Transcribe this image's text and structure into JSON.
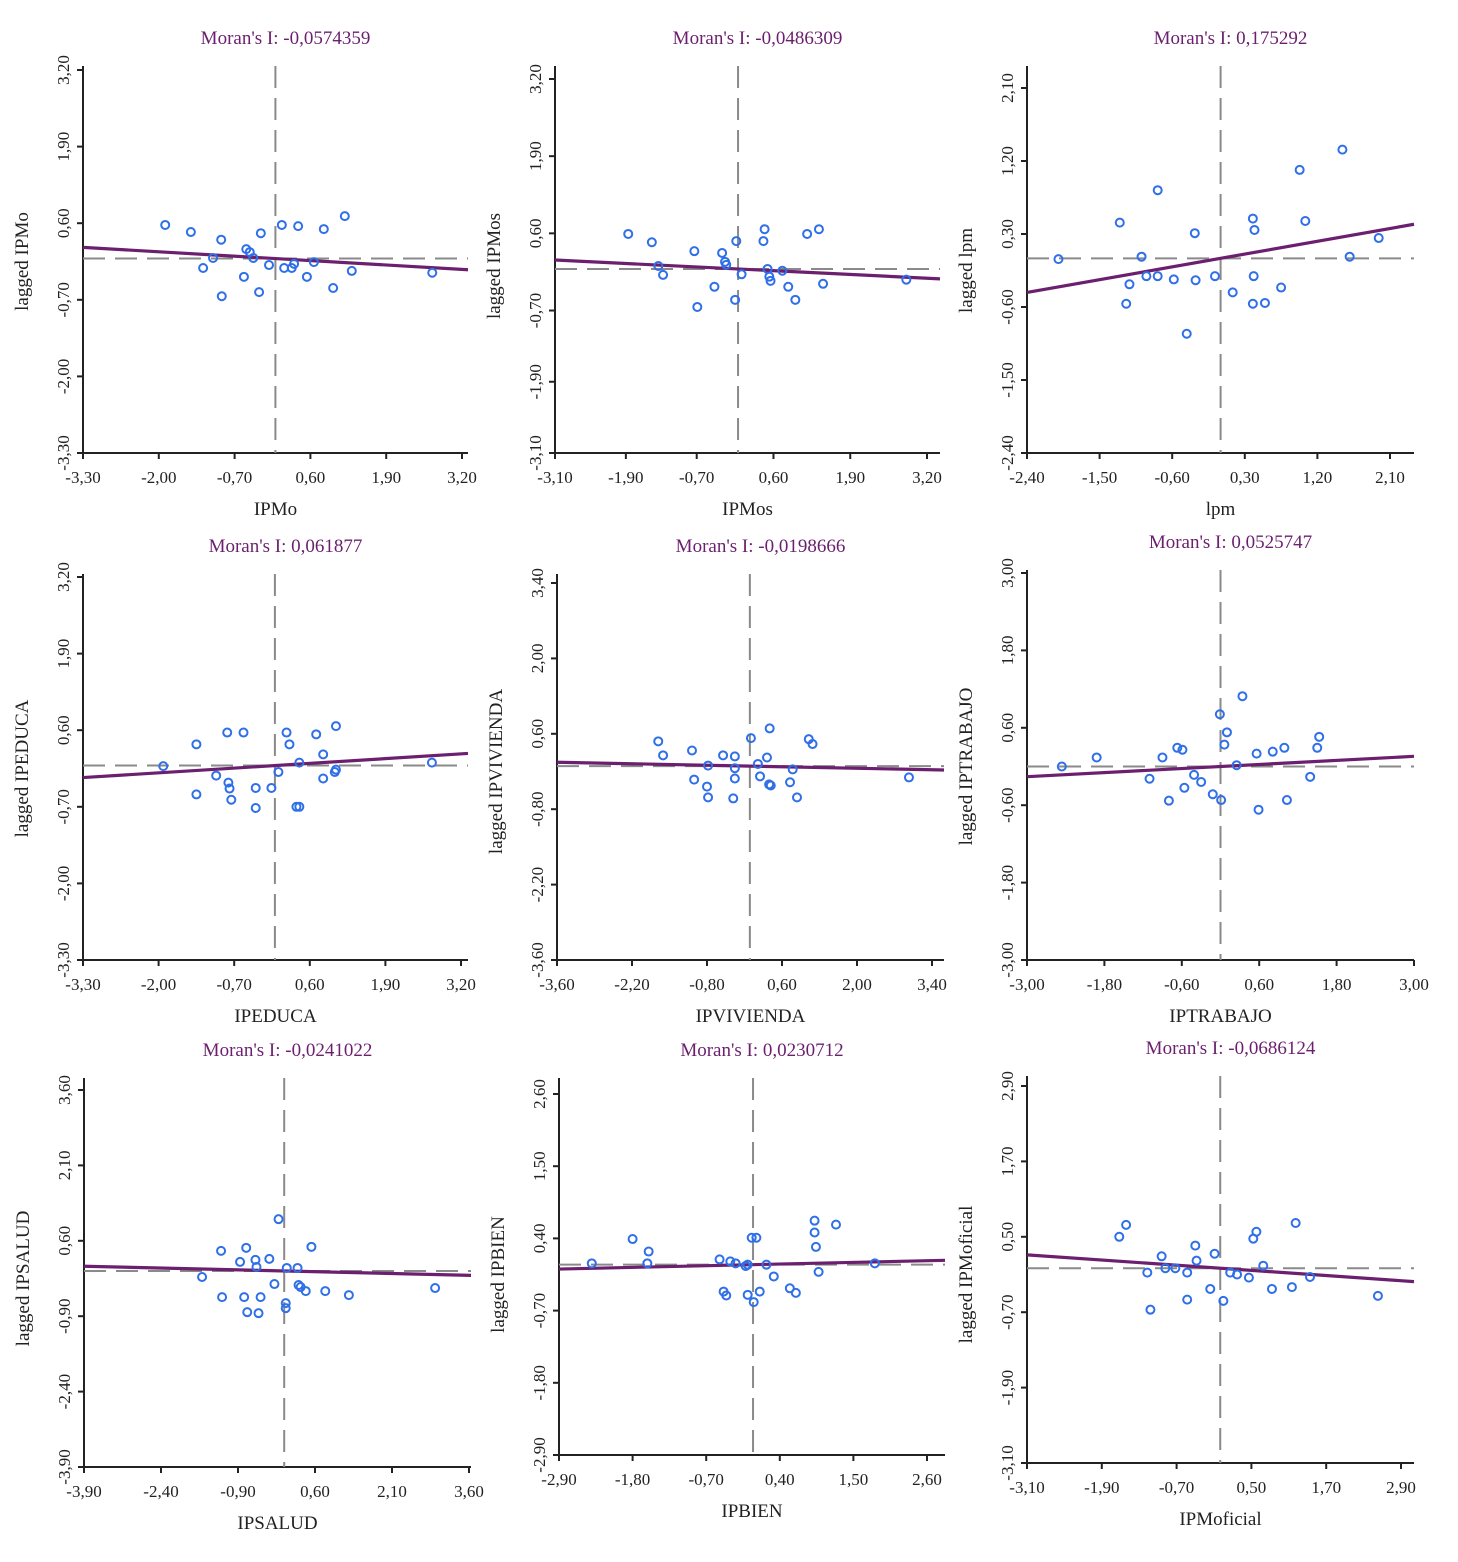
{
  "chart_data": [
    {
      "type": "scatter",
      "title": "Moran's I: -0,0574359",
      "moran_i": -0.0574359,
      "xlabel": "IPMo",
      "ylabel": "lagged IPMo",
      "xlim": [
        -3.3,
        3.2
      ],
      "ylim": [
        -3.3,
        3.2
      ],
      "xticks": [
        "-3,30",
        "-2,00",
        "-0,70",
        "0,60",
        "1,90",
        "3,20"
      ],
      "yticks": [
        "-3,30",
        "-2,00",
        "-0,70",
        "0,60",
        "1,90",
        "3,20"
      ],
      "points": [
        [
          -1.89,
          0.57
        ],
        [
          -1.45,
          0.45
        ],
        [
          -1.24,
          -0.16
        ],
        [
          -1.07,
          0.01
        ],
        [
          -0.93,
          0.32
        ],
        [
          -0.92,
          -0.64
        ],
        [
          -0.54,
          -0.31
        ],
        [
          -0.5,
          0.16
        ],
        [
          -0.44,
          0.11
        ],
        [
          -0.38,
          0.01
        ],
        [
          -0.28,
          -0.57
        ],
        [
          -0.25,
          0.43
        ],
        [
          -0.11,
          -0.11
        ],
        [
          0.11,
          0.57
        ],
        [
          0.15,
          -0.16
        ],
        [
          0.28,
          -0.16
        ],
        [
          0.32,
          -0.09
        ],
        [
          0.39,
          0.55
        ],
        [
          0.54,
          -0.31
        ],
        [
          0.66,
          -0.06
        ],
        [
          0.83,
          0.5
        ],
        [
          0.99,
          -0.5
        ],
        [
          1.19,
          0.72
        ],
        [
          1.31,
          -0.21
        ],
        [
          2.69,
          -0.24
        ]
      ],
      "mean_x": 0.0,
      "mean_y": 0.0
    },
    {
      "type": "scatter",
      "title": "Moran's I: -0,0486309",
      "moran_i": -0.0486309,
      "xlabel": "IPMos",
      "ylabel": "lagged IPMos",
      "xlim": [
        -3.1,
        3.2
      ],
      "ylim": [
        -3.1,
        3.2
      ],
      "xticks": [
        "-3,10",
        "-1,90",
        "-0,70",
        "0,60",
        "1,90",
        "3,20"
      ],
      "yticks": [
        "-3,10",
        "-1,90",
        "-0,70",
        "0,60",
        "1,90",
        "3,20"
      ],
      "points": [
        [
          -1.86,
          0.59
        ],
        [
          -1.46,
          0.45
        ],
        [
          -1.35,
          0.05
        ],
        [
          -1.27,
          -0.1
        ],
        [
          -0.74,
          0.3
        ],
        [
          -0.69,
          -0.64
        ],
        [
          -0.4,
          -0.3
        ],
        [
          -0.27,
          0.27
        ],
        [
          -0.22,
          0.12
        ],
        [
          -0.2,
          0.07
        ],
        [
          -0.05,
          -0.52
        ],
        [
          -0.03,
          0.47
        ],
        [
          0.06,
          -0.09
        ],
        [
          0.45,
          0.67
        ],
        [
          0.43,
          0.47
        ],
        [
          0.5,
          0.0
        ],
        [
          0.53,
          -0.13
        ],
        [
          0.55,
          -0.2
        ],
        [
          0.75,
          -0.03
        ],
        [
          0.85,
          -0.3
        ],
        [
          0.97,
          -0.52
        ],
        [
          1.17,
          0.59
        ],
        [
          1.37,
          0.67
        ],
        [
          1.44,
          -0.25
        ],
        [
          2.85,
          -0.18
        ]
      ],
      "mean_x": 0.0,
      "mean_y": 0.0
    },
    {
      "type": "scatter",
      "title": "Moran's I: 0,175292",
      "moran_i": 0.175292,
      "xlabel": "lpm",
      "ylabel": "lagged lpm",
      "xlim": [
        -2.4,
        2.3
      ],
      "ylim": [
        -2.4,
        2.3
      ],
      "xticks": [
        "-2,40",
        "-1,50",
        "-0,60",
        "0,30",
        "1,20",
        "2,10"
      ],
      "yticks": [
        "-2,40",
        "-1,50",
        "-0,60",
        "0,30",
        "1,20",
        "2,10"
      ],
      "points": [
        [
          -2.01,
          -0.01
        ],
        [
          -1.25,
          0.44
        ],
        [
          -0.78,
          0.84
        ],
        [
          -1.13,
          -0.32
        ],
        [
          -1.17,
          -0.56
        ],
        [
          -0.98,
          0.02
        ],
        [
          -0.92,
          -0.22
        ],
        [
          -0.78,
          -0.22
        ],
        [
          -0.58,
          -0.26
        ],
        [
          -0.32,
          0.31
        ],
        [
          -0.31,
          -0.27
        ],
        [
          -0.07,
          -0.22
        ],
        [
          -0.42,
          -0.93
        ],
        [
          0.4,
          0.49
        ],
        [
          0.42,
          0.35
        ],
        [
          0.41,
          -0.22
        ],
        [
          0.15,
          -0.42
        ],
        [
          0.4,
          -0.56
        ],
        [
          0.55,
          -0.55
        ],
        [
          0.75,
          -0.36
        ],
        [
          0.98,
          1.09
        ],
        [
          1.05,
          0.46
        ],
        [
          1.51,
          1.34
        ],
        [
          1.6,
          0.02
        ],
        [
          1.96,
          0.25
        ]
      ],
      "mean_x": 0.0,
      "mean_y": 0.0
    },
    {
      "type": "scatter",
      "title": "Moran's I: 0,061877",
      "moran_i": 0.061877,
      "xlabel": "IPEDUCA",
      "ylabel": "lagged IPEDUCA",
      "xlim": [
        -3.3,
        3.2
      ],
      "ylim": [
        -3.3,
        3.2
      ],
      "xticks": [
        "-3,30",
        "-2,00",
        "-0,70",
        "0,60",
        "1,90",
        "3,20"
      ],
      "yticks": [
        "-3,30",
        "-2,00",
        "-0,70",
        "0,60",
        "1,90",
        "3,20"
      ],
      "points": [
        [
          -1.92,
          -0.01
        ],
        [
          -1.35,
          0.36
        ],
        [
          -1.35,
          -0.49
        ],
        [
          -1.01,
          -0.17
        ],
        [
          -0.82,
          0.56
        ],
        [
          -0.8,
          -0.29
        ],
        [
          -0.78,
          -0.39
        ],
        [
          -0.75,
          -0.58
        ],
        [
          -0.54,
          0.56
        ],
        [
          -0.33,
          -0.38
        ],
        [
          -0.33,
          -0.72
        ],
        [
          -0.06,
          -0.38
        ],
        [
          0.06,
          -0.11
        ],
        [
          0.2,
          0.56
        ],
        [
          0.25,
          0.36
        ],
        [
          0.37,
          -0.7
        ],
        [
          0.42,
          -0.7
        ],
        [
          0.42,
          0.05
        ],
        [
          0.71,
          0.53
        ],
        [
          0.83,
          0.19
        ],
        [
          0.83,
          -0.22
        ],
        [
          1.05,
          0.67
        ],
        [
          1.03,
          -0.11
        ],
        [
          1.05,
          -0.07
        ],
        [
          2.7,
          0.05
        ]
      ],
      "mean_x": 0.0,
      "mean_y": 0.0
    },
    {
      "type": "scatter",
      "title": "Moran's I: -0,0198666",
      "moran_i": -0.0198666,
      "xlabel": "IPVIVIENDA",
      "ylabel": "lagged IPVIVIENDA",
      "xlim": [
        -3.6,
        3.4
      ],
      "ylim": [
        -3.6,
        3.4
      ],
      "xticks": [
        "-3,60",
        "-2,20",
        "-0,80",
        "0,60",
        "2,00",
        "3,40"
      ],
      "yticks": [
        "-3,60",
        "-2,20",
        "-0,80",
        "0,60",
        "2,00",
        "3,40"
      ],
      "points": [
        [
          -1.71,
          0.46
        ],
        [
          -1.62,
          0.2
        ],
        [
          -1.08,
          0.29
        ],
        [
          -1.04,
          -0.25
        ],
        [
          -0.78,
          0.01
        ],
        [
          -0.8,
          -0.38
        ],
        [
          -0.78,
          -0.58
        ],
        [
          -0.5,
          0.2
        ],
        [
          -0.28,
          0.18
        ],
        [
          -0.28,
          -0.04
        ],
        [
          -0.28,
          -0.23
        ],
        [
          -0.31,
          -0.6
        ],
        [
          0.02,
          0.52
        ],
        [
          0.15,
          0.04
        ],
        [
          0.19,
          -0.19
        ],
        [
          0.32,
          0.16
        ],
        [
          0.37,
          0.7
        ],
        [
          0.36,
          -0.34
        ],
        [
          0.39,
          -0.36
        ],
        [
          0.75,
          -0.3
        ],
        [
          0.8,
          -0.06
        ],
        [
          0.88,
          -0.58
        ],
        [
          1.1,
          0.5
        ],
        [
          1.17,
          0.41
        ],
        [
          2.97,
          -0.21
        ]
      ],
      "mean_x": 0.0,
      "mean_y": 0.0
    },
    {
      "type": "scatter",
      "title": "Moran's I: 0,0525747",
      "moran_i": 0.0525747,
      "xlabel": "IPTRABAJO",
      "ylabel": "lagged IPTRABAJO",
      "xlim": [
        -3.0,
        3.0
      ],
      "ylim": [
        -3.0,
        3.0
      ],
      "xticks": [
        "-3,00",
        "-1,80",
        "-0,60",
        "0,60",
        "1,80",
        "3,00"
      ],
      "yticks": [
        "-3,00",
        "-1,80",
        "-0,60",
        "0,60",
        "1,80",
        "3,00"
      ],
      "points": [
        [
          -2.46,
          0.0
        ],
        [
          -1.92,
          0.14
        ],
        [
          -1.1,
          -0.19
        ],
        [
          -0.9,
          0.14
        ],
        [
          -0.8,
          -0.53
        ],
        [
          -0.67,
          0.29
        ],
        [
          -0.59,
          0.26
        ],
        [
          -0.56,
          -0.33
        ],
        [
          -0.41,
          -0.13
        ],
        [
          -0.3,
          -0.24
        ],
        [
          -0.12,
          -0.43
        ],
        [
          -0.01,
          0.81
        ],
        [
          0.01,
          -0.52
        ],
        [
          0.1,
          0.53
        ],
        [
          0.06,
          0.34
        ],
        [
          0.25,
          0.02
        ],
        [
          0.34,
          1.09
        ],
        [
          0.56,
          0.2
        ],
        [
          0.59,
          -0.67
        ],
        [
          0.81,
          0.23
        ],
        [
          0.99,
          0.29
        ],
        [
          1.03,
          -0.52
        ],
        [
          1.39,
          -0.16
        ],
        [
          1.5,
          0.29
        ],
        [
          1.53,
          0.46
        ]
      ],
      "mean_x": 0.0,
      "mean_y": 0.0
    },
    {
      "type": "scatter",
      "title": "Moran's I: -0,0241022",
      "moran_i": -0.0241022,
      "xlabel": "IPSALUD",
      "ylabel": "lagged IPSALUD",
      "xlim": [
        -3.9,
        3.6
      ],
      "ylim": [
        -3.9,
        3.6
      ],
      "xticks": [
        "-3,90",
        "-2,40",
        "-0,90",
        "0,60",
        "2,10",
        "3,60"
      ],
      "yticks": [
        "-3,90",
        "-2,40",
        "-0,90",
        "0,60",
        "2,10",
        "3,60"
      ],
      "points": [
        [
          -1.6,
          -0.12
        ],
        [
          -1.23,
          0.4
        ],
        [
          -1.21,
          -0.52
        ],
        [
          -0.86,
          0.18
        ],
        [
          -0.78,
          -0.52
        ],
        [
          -0.74,
          0.46
        ],
        [
          -0.72,
          -0.82
        ],
        [
          -0.56,
          0.22
        ],
        [
          -0.54,
          0.08
        ],
        [
          -0.5,
          -0.84
        ],
        [
          -0.46,
          -0.52
        ],
        [
          -0.29,
          0.24
        ],
        [
          -0.19,
          -0.26
        ],
        [
          -0.11,
          1.03
        ],
        [
          0.03,
          -0.74
        ],
        [
          0.03,
          -0.64
        ],
        [
          0.05,
          0.06
        ],
        [
          0.26,
          0.06
        ],
        [
          0.28,
          -0.28
        ],
        [
          0.32,
          -0.32
        ],
        [
          0.42,
          -0.4
        ],
        [
          0.53,
          0.48
        ],
        [
          0.8,
          -0.4
        ],
        [
          1.26,
          -0.48
        ],
        [
          2.94,
          -0.34
        ]
      ],
      "mean_x": 0.0,
      "mean_y": 0.0
    },
    {
      "type": "scatter",
      "title": "Moran's I: 0,0230712",
      "moran_i": 0.0230712,
      "xlabel": "IPBIEN",
      "ylabel": "lagged IPBIEN",
      "xlim": [
        -2.9,
        2.9
      ],
      "ylim": [
        -2.9,
        2.9
      ],
      "xticks": [
        "-2,90",
        "-1,80",
        "-0,70",
        "0,40",
        "1,50",
        "2,60"
      ],
      "yticks": [
        "-2,90",
        "-1,80",
        "-0,70",
        "0,40",
        "1,50",
        "2,60"
      ],
      "points": [
        [
          -2.41,
          0.02
        ],
        [
          -1.8,
          0.39
        ],
        [
          -1.56,
          0.2
        ],
        [
          -1.58,
          0.02
        ],
        [
          -0.5,
          0.08
        ],
        [
          -0.34,
          0.05
        ],
        [
          -0.26,
          0.02
        ],
        [
          -0.11,
          -0.02
        ],
        [
          -0.08,
          0.0
        ],
        [
          -0.08,
          -0.46
        ],
        [
          -0.4,
          -0.47
        ],
        [
          -0.44,
          -0.41
        ],
        [
          -0.02,
          0.41
        ],
        [
          0.05,
          0.41
        ],
        [
          0.01,
          -0.57
        ],
        [
          0.1,
          -0.41
        ],
        [
          0.2,
          0.0
        ],
        [
          0.31,
          -0.18
        ],
        [
          0.55,
          -0.36
        ],
        [
          0.64,
          -0.43
        ],
        [
          0.92,
          0.67
        ],
        [
          0.92,
          0.49
        ],
        [
          0.94,
          0.27
        ],
        [
          0.98,
          -0.11
        ],
        [
          1.24,
          0.61
        ],
        [
          1.82,
          0.02
        ]
      ],
      "mean_x": 0.0,
      "mean_y": 0.0
    },
    {
      "type": "scatter",
      "title": "Moran's I: -0,0686124",
      "moran_i": -0.0686124,
      "xlabel": "IPMoficial",
      "ylabel": "lagged IPMoficial",
      "xlim": [
        -3.1,
        3.1
      ],
      "ylim": [
        -3.1,
        3.1
      ],
      "xticks": [
        "-3,10",
        "-1,90",
        "-0,70",
        "0,50",
        "1,70",
        "2,90"
      ],
      "yticks": [
        "-3,10",
        "-1,90",
        "-0,70",
        "0,50",
        "1,70",
        "2,90"
      ],
      "points": [
        [
          -1.62,
          0.5
        ],
        [
          -1.51,
          0.69
        ],
        [
          -1.17,
          -0.07
        ],
        [
          -1.12,
          -0.66
        ],
        [
          -0.94,
          0.19
        ],
        [
          -0.88,
          0.0
        ],
        [
          -0.72,
          0.0
        ],
        [
          -0.53,
          -0.07
        ],
        [
          -0.53,
          -0.5
        ],
        [
          -0.4,
          0.36
        ],
        [
          -0.38,
          0.12
        ],
        [
          -0.16,
          -0.33
        ],
        [
          -0.09,
          0.23
        ],
        [
          0.05,
          -0.52
        ],
        [
          0.16,
          -0.07
        ],
        [
          0.27,
          -0.1
        ],
        [
          0.46,
          -0.15
        ],
        [
          0.53,
          0.47
        ],
        [
          0.58,
          0.58
        ],
        [
          0.69,
          0.04
        ],
        [
          0.83,
          -0.33
        ],
        [
          1.15,
          -0.3
        ],
        [
          1.44,
          -0.14
        ],
        [
          1.21,
          0.72
        ],
        [
          2.53,
          -0.44
        ]
      ],
      "mean_x": 0.0,
      "mean_y": 0.0
    }
  ]
}
